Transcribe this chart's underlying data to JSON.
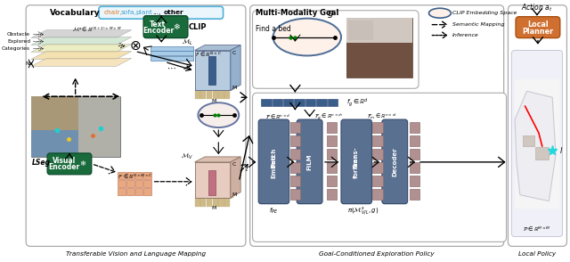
{
  "section_labels": [
    "Transferable Vision and Language Mapping",
    "Goal-Conditioned Exploration Policy",
    "Local Policy"
  ],
  "green_box_color": "#1a6b3c",
  "blue_box_color": "#5a7fa8",
  "orange_box_color": "#d07030",
  "light_blue_color": "#a0c8e0",
  "dark_blue_color": "#3a5e8a",
  "mauve_color": "#9a7a80",
  "vocab_box_color": "#eaf6fc",
  "vocab_border_color": "#50b0d8",
  "nn_block_color": "#5a7090",
  "nn_block_edge": "#3a5070"
}
